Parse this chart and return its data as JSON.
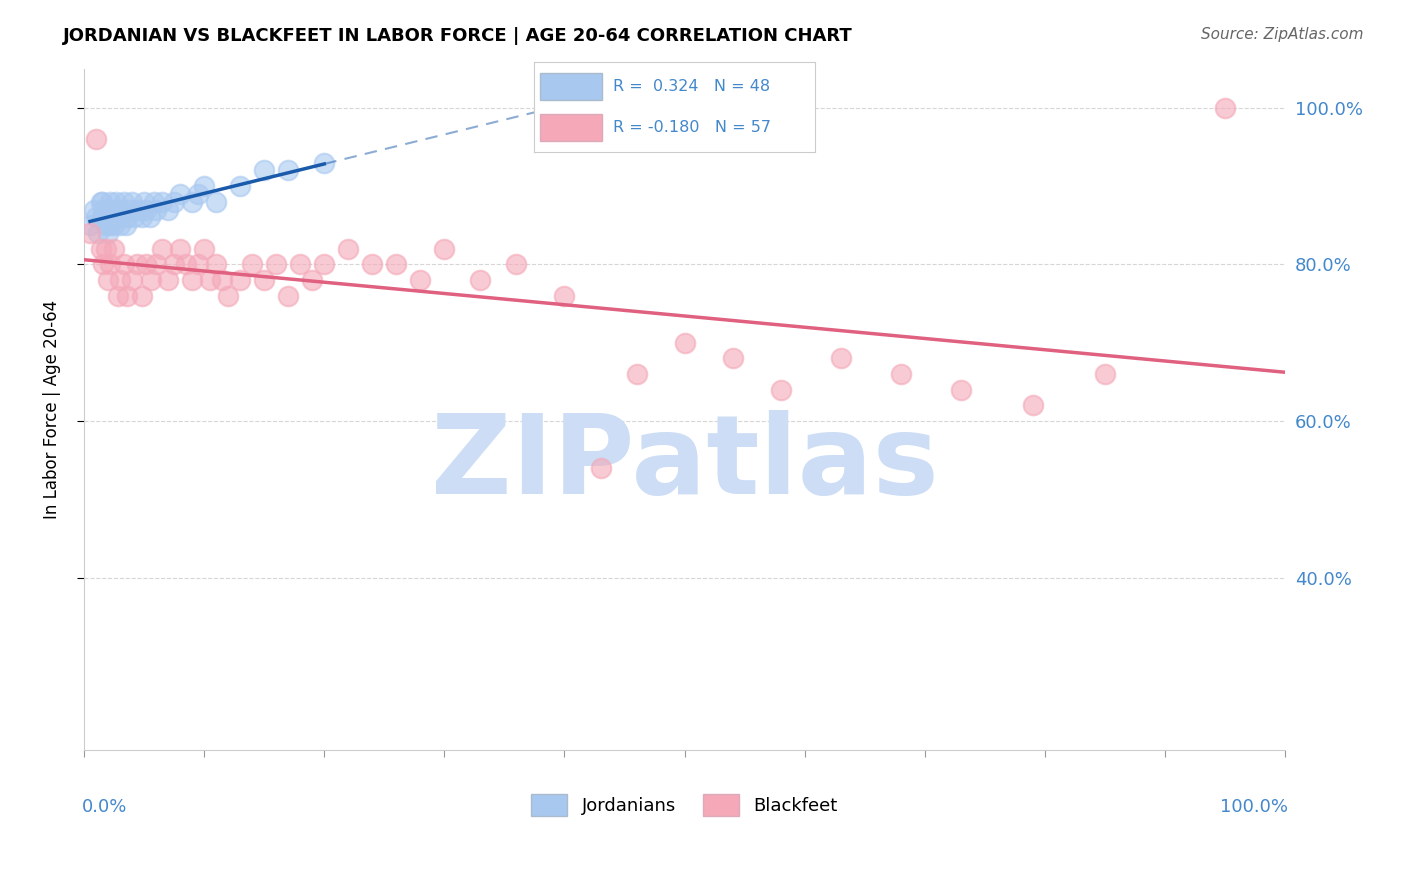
{
  "title": "JORDANIAN VS BLACKFEET IN LABOR FORCE | AGE 20-64 CORRELATION CHART",
  "source": "Source: ZipAtlas.com",
  "ylabel": "In Labor Force | Age 20-64",
  "legend_jordanians": "Jordanians",
  "legend_blackfeet": "Blackfeet",
  "R_jordanian": 0.324,
  "N_jordanian": 48,
  "R_blackfeet": -0.18,
  "N_blackfeet": 57,
  "jordanian_color": "#a8c8f0",
  "blackfeet_color": "#f4a8b8",
  "jordanian_line_color": "#1a5aab",
  "blackfeet_line_color": "#e06080",
  "grid_color": "#cccccc",
  "watermark": "ZIPatlas",
  "watermark_color": "#ccddf5",
  "right_axis_color": "#4488cc",
  "jordanian_x": [
    0.005,
    0.008,
    0.01,
    0.012,
    0.014,
    0.015,
    0.015,
    0.016,
    0.017,
    0.018,
    0.02,
    0.02,
    0.022,
    0.022,
    0.023,
    0.025,
    0.025,
    0.026,
    0.027,
    0.028,
    0.03,
    0.03,
    0.032,
    0.033,
    0.035,
    0.036,
    0.038,
    0.04,
    0.042,
    0.045,
    0.048,
    0.05,
    0.052,
    0.055,
    0.058,
    0.06,
    0.065,
    0.07,
    0.075,
    0.08,
    0.09,
    0.095,
    0.1,
    0.11,
    0.13,
    0.15,
    0.17,
    0.2
  ],
  "jordanian_y": [
    0.85,
    0.87,
    0.86,
    0.84,
    0.88,
    0.86,
    0.88,
    0.87,
    0.86,
    0.85,
    0.86,
    0.84,
    0.88,
    0.85,
    0.86,
    0.87,
    0.85,
    0.86,
    0.88,
    0.86,
    0.85,
    0.87,
    0.86,
    0.88,
    0.85,
    0.86,
    0.87,
    0.88,
    0.86,
    0.87,
    0.86,
    0.88,
    0.87,
    0.86,
    0.88,
    0.87,
    0.88,
    0.87,
    0.88,
    0.89,
    0.88,
    0.89,
    0.9,
    0.88,
    0.9,
    0.92,
    0.92,
    0.93
  ],
  "blackfeet_x": [
    0.005,
    0.01,
    0.014,
    0.016,
    0.018,
    0.02,
    0.022,
    0.025,
    0.028,
    0.03,
    0.033,
    0.036,
    0.04,
    0.044,
    0.048,
    0.052,
    0.056,
    0.06,
    0.065,
    0.07,
    0.075,
    0.08,
    0.085,
    0.09,
    0.095,
    0.1,
    0.105,
    0.11,
    0.115,
    0.12,
    0.13,
    0.14,
    0.15,
    0.16,
    0.17,
    0.18,
    0.19,
    0.2,
    0.22,
    0.24,
    0.26,
    0.28,
    0.3,
    0.33,
    0.36,
    0.4,
    0.43,
    0.46,
    0.5,
    0.54,
    0.58,
    0.63,
    0.68,
    0.73,
    0.79,
    0.85,
    0.95
  ],
  "blackfeet_y": [
    0.84,
    0.96,
    0.82,
    0.8,
    0.82,
    0.78,
    0.8,
    0.82,
    0.76,
    0.78,
    0.8,
    0.76,
    0.78,
    0.8,
    0.76,
    0.8,
    0.78,
    0.8,
    0.82,
    0.78,
    0.8,
    0.82,
    0.8,
    0.78,
    0.8,
    0.82,
    0.78,
    0.8,
    0.78,
    0.76,
    0.78,
    0.8,
    0.78,
    0.8,
    0.76,
    0.8,
    0.78,
    0.8,
    0.82,
    0.8,
    0.8,
    0.78,
    0.82,
    0.78,
    0.8,
    0.76,
    0.54,
    0.66,
    0.7,
    0.68,
    0.64,
    0.68,
    0.66,
    0.64,
    0.62,
    0.66,
    1.0
  ],
  "ylim_min": 0.18,
  "ylim_max": 1.05,
  "xlim_min": 0.0,
  "xlim_max": 1.0,
  "yticks": [
    0.4,
    0.6,
    0.8,
    1.0
  ]
}
